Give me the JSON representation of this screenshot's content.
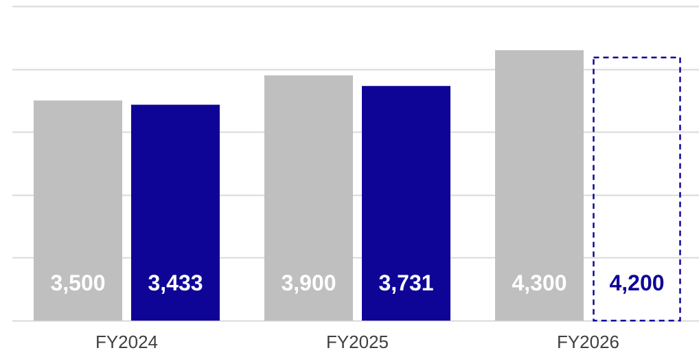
{
  "chart_data": {
    "type": "bar",
    "categories": [
      "FY2024",
      "FY2025",
      "FY2026"
    ],
    "series": [
      {
        "values": [
          3500,
          3900,
          4300
        ],
        "value_labels": [
          "3,500",
          "3,900",
          "4,300"
        ],
        "color": "#bfbfbf",
        "label_color": "#ffffff",
        "style": "solid"
      },
      {
        "values": [
          3433,
          3731,
          4200
        ],
        "value_labels": [
          "3,433",
          "3,731",
          "4,200"
        ],
        "color": "#0e0597",
        "label_color": "#ffffff",
        "style": [
          "solid",
          "solid",
          "dashed-outline"
        ]
      }
    ],
    "ylim": [
      0,
      5000
    ],
    "gridlines": [
      0,
      1000,
      2000,
      3000,
      4000,
      5000
    ],
    "grid": true,
    "legend": "none",
    "colors": {
      "grid": "#d9d9d9",
      "axis_label": "#404040",
      "outline_label": "#0e0597"
    }
  }
}
